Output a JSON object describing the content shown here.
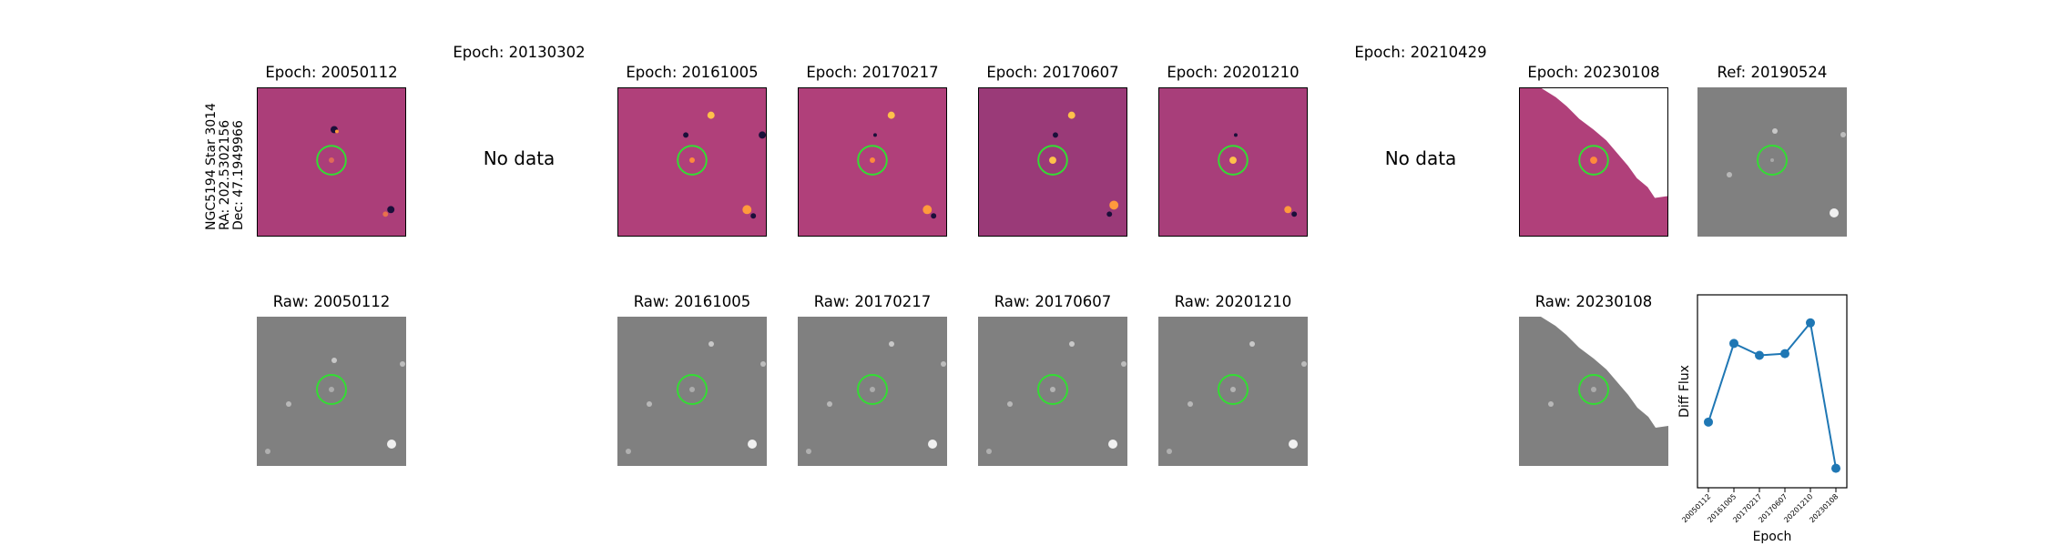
{
  "star": {
    "name": "NGC5194 Star 3014",
    "ra": "RA: 202.5302156",
    "dec": "Dec: 47.1949966"
  },
  "epochs": [
    {
      "label": "Epoch: 20050112",
      "raw_label": "Raw: 20050112",
      "has_data": true
    },
    {
      "label": "Epoch: 20130302",
      "raw_label": "",
      "has_data": false,
      "no_data_text": "No data"
    },
    {
      "label": "Epoch: 20161005",
      "raw_label": "Raw: 20161005",
      "has_data": true
    },
    {
      "label": "Epoch: 20170217",
      "raw_label": "Raw: 20170217",
      "has_data": true
    },
    {
      "label": "Epoch: 20170607",
      "raw_label": "Raw: 20170607",
      "has_data": true
    },
    {
      "label": "Epoch: 20201210",
      "raw_label": "Raw: 20201210",
      "has_data": true
    },
    {
      "label": "Epoch: 20210429",
      "raw_label": "",
      "has_data": false,
      "no_data_text": "No data"
    },
    {
      "label": "Epoch: 20230108",
      "raw_label": "Raw: 20230108",
      "has_data": true,
      "partial": true
    }
  ],
  "reference": {
    "label": "Ref: 20190524"
  },
  "colors": {
    "circle": "#33dd33",
    "line": "#1f77b4",
    "diff_bg": "#b0407a",
    "raw_bg": "#808080"
  },
  "chart_data": {
    "type": "line",
    "xlabel": "Epoch",
    "ylabel": "Diff Flux",
    "categories": [
      "20050112",
      "20161005",
      "20170217",
      "20170607",
      "20201210",
      "20230108"
    ],
    "values": [
      0.32,
      0.78,
      0.71,
      0.72,
      0.9,
      0.05
    ],
    "ylim": [
      0,
      1
    ],
    "yticks_shown": false,
    "grid": false
  }
}
